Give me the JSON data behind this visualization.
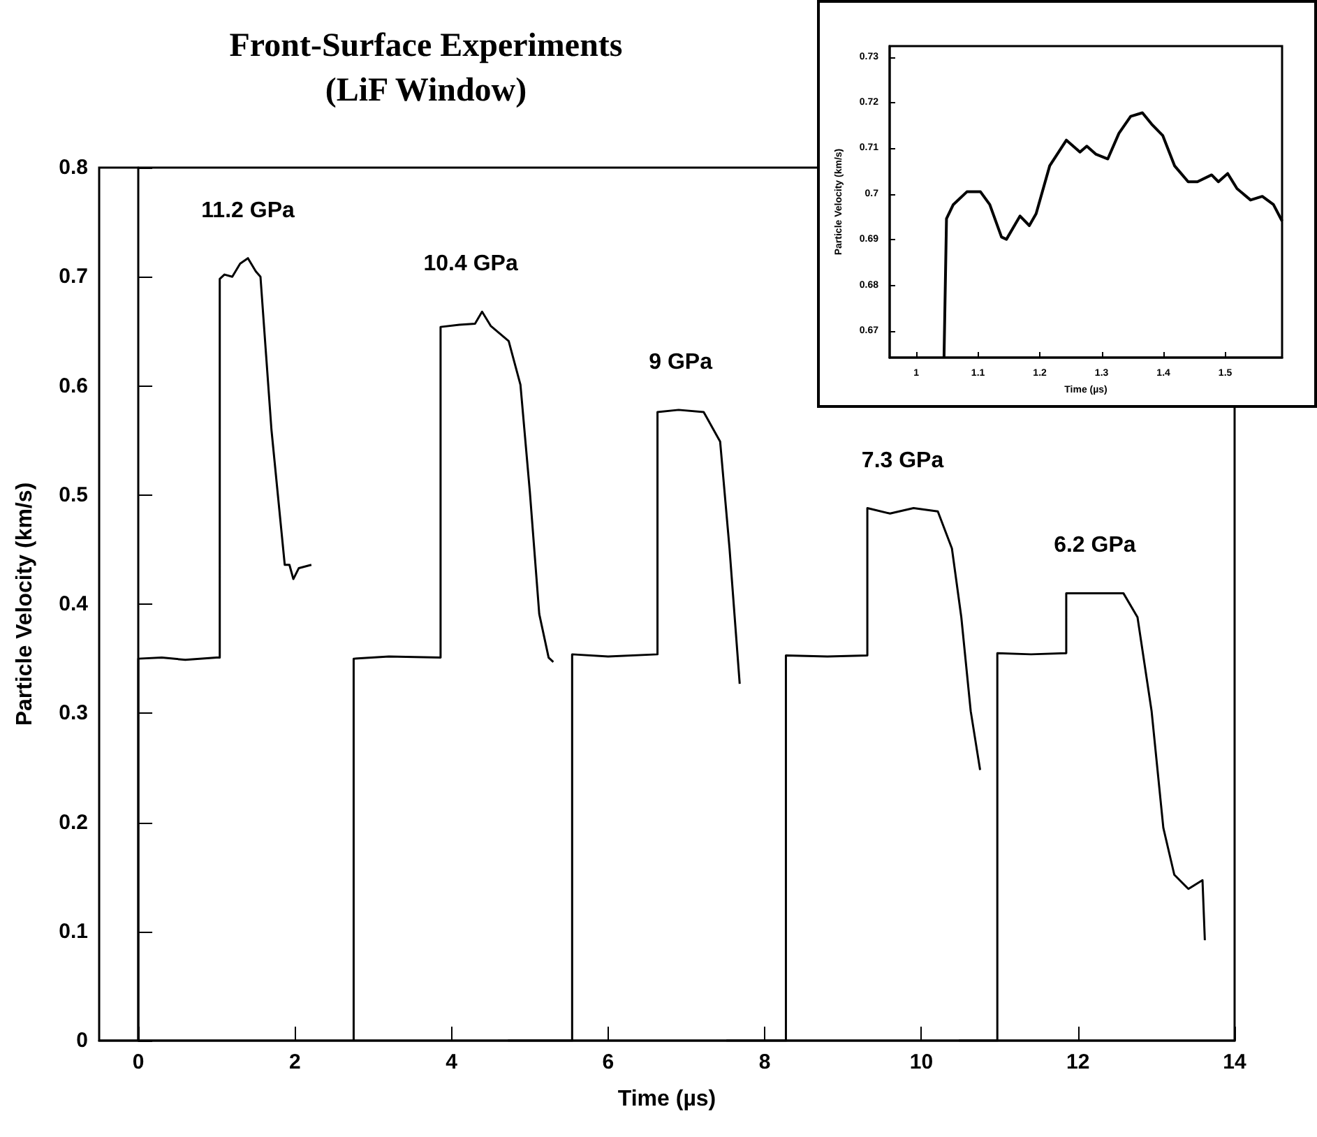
{
  "chart_data": [
    {
      "type": "line",
      "title": "Front-Surface Experiments\n(LiF Window)",
      "xlabel": "Time (µs)",
      "ylabel": "Particle Velocity (km/s)",
      "xlim": [
        -0.5,
        14
      ],
      "ylim": [
        0,
        0.8
      ],
      "xticks": [
        0,
        2,
        4,
        6,
        8,
        10,
        12,
        14
      ],
      "yticks": [
        0,
        0.1,
        0.2,
        0.3,
        0.4,
        0.5,
        0.6,
        0.7,
        0.8
      ],
      "series": [
        {
          "name": "11.2 GPa",
          "color": "#000000",
          "x": [
            0,
            0,
            0.3,
            0.6,
            1.0,
            1.04,
            1.04,
            1.1,
            1.2,
            1.3,
            1.4,
            1.5,
            1.56,
            1.7,
            1.87,
            1.93,
            1.98,
            2.05,
            2.21
          ],
          "values": [
            0,
            0.35,
            0.351,
            0.349,
            0.351,
            0.351,
            0.698,
            0.702,
            0.7,
            0.712,
            0.717,
            0.705,
            0.7,
            0.56,
            0.436,
            0.436,
            0.423,
            0.433,
            0.436
          ]
        },
        {
          "name": "10.4 GPa",
          "color": "#000000",
          "x": [
            2.75,
            2.75,
            3.2,
            3.86,
            3.86,
            4.1,
            4.3,
            4.39,
            4.5,
            4.73,
            4.88,
            5.0,
            5.12,
            5.24,
            5.3
          ],
          "values": [
            0,
            0.35,
            0.352,
            0.351,
            0.654,
            0.656,
            0.657,
            0.668,
            0.655,
            0.641,
            0.601,
            0.503,
            0.391,
            0.351,
            0.347
          ]
        },
        {
          "name": "9 GPa",
          "color": "#000000",
          "x": [
            4.72,
            5.54,
            5.54,
            6.0,
            6.63,
            6.63,
            6.9,
            7.22,
            7.43,
            7.55,
            7.68
          ],
          "values": [
            0,
            0,
            0.354,
            0.352,
            0.354,
            0.576,
            0.578,
            0.576,
            0.549,
            0.451,
            0.327
          ]
        },
        {
          "name": "7.3 GPa",
          "color": "#000000",
          "x": [
            7.51,
            8.27,
            8.27,
            8.8,
            9.31,
            9.31,
            9.6,
            9.9,
            10.21,
            10.39,
            10.51,
            10.63,
            10.75
          ],
          "values": [
            0,
            0,
            0.353,
            0.352,
            0.353,
            0.488,
            0.483,
            0.488,
            0.485,
            0.451,
            0.388,
            0.302,
            0.248
          ]
        },
        {
          "name": "6.2 GPa",
          "color": "#000000",
          "x": [
            10.48,
            10.97,
            10.97,
            11.4,
            11.85,
            11.85,
            12.2,
            12.58,
            12.76,
            12.94,
            13.09,
            13.23,
            13.41,
            13.59,
            13.62
          ],
          "values": [
            0,
            0,
            0.355,
            0.354,
            0.355,
            0.41,
            0.41,
            0.41,
            0.388,
            0.302,
            0.195,
            0.152,
            0.139,
            0.147,
            0.092
          ]
        }
      ]
    },
    {
      "type": "line",
      "xlabel": "Time (µs)",
      "ylabel": "Particle Velocity (km/s)",
      "xlim": [
        0.957,
        1.592
      ],
      "ylim": [
        0.6642,
        0.7324
      ],
      "xticks": [
        1,
        1.1,
        1.2,
        1.3,
        1.4,
        1.5
      ],
      "yticks": [
        0.67,
        0.68,
        0.69,
        0.7,
        0.71,
        0.72,
        0.73
      ],
      "series": [
        {
          "color": "#000000",
          "x": [
            1.045,
            1.049,
            1.06,
            1.082,
            1.104,
            1.119,
            1.138,
            1.146,
            1.168,
            1.183,
            1.194,
            1.216,
            1.243,
            1.265,
            1.276,
            1.291,
            1.31,
            1.328,
            1.347,
            1.366,
            1.381,
            1.399,
            1.418,
            1.44,
            1.455,
            1.478,
            1.489,
            1.504,
            1.519,
            1.541,
            1.56,
            1.578,
            1.592
          ],
          "values": [
            0.6642,
            0.6946,
            0.6977,
            0.7005,
            0.7005,
            0.6977,
            0.6906,
            0.6901,
            0.6952,
            0.6931,
            0.6957,
            0.7062,
            0.7118,
            0.7092,
            0.7105,
            0.7087,
            0.7077,
            0.7133,
            0.717,
            0.7178,
            0.7153,
            0.7128,
            0.7062,
            0.7027,
            0.7027,
            0.7042,
            0.7027,
            0.7045,
            0.7012,
            0.6987,
            0.6995,
            0.6977,
            0.6941
          ]
        }
      ]
    }
  ]
}
